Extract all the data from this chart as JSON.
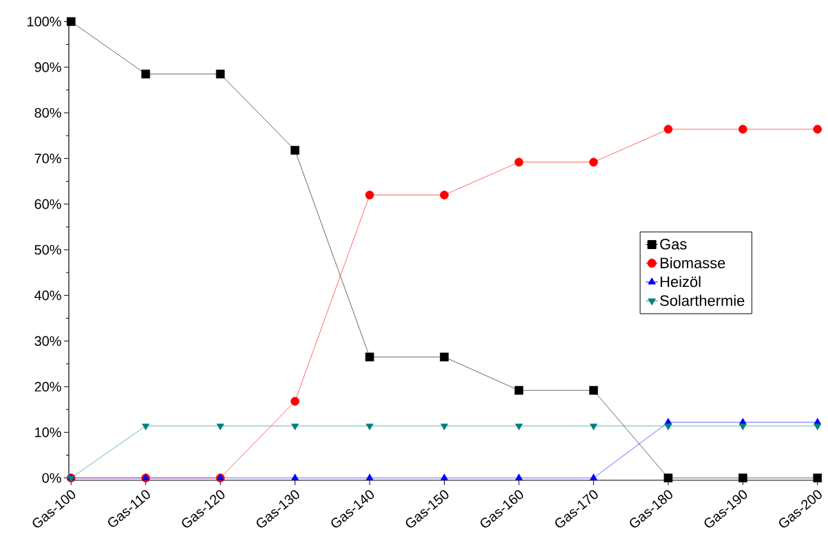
{
  "chart_data": {
    "type": "line",
    "categories": [
      "Gas-100",
      "Gas-110",
      "Gas-120",
      "Gas-130",
      "Gas-140",
      "Gas-150",
      "Gas-160",
      "Gas-170",
      "Gas-180",
      "Gas-190",
      "Gas-200"
    ],
    "series": [
      {
        "name": "Gas",
        "color": "#000000",
        "marker": "square",
        "values": [
          100,
          88.5,
          88.5,
          71.8,
          26.5,
          26.5,
          19.2,
          19.2,
          0,
          0,
          0
        ]
      },
      {
        "name": "Biomasse",
        "color": "#ff0000",
        "marker": "circle",
        "values": [
          0,
          0,
          0,
          16.8,
          62,
          62,
          69.2,
          69.2,
          76.4,
          76.4,
          76.4
        ]
      },
      {
        "name": "Heizöl",
        "color": "#0000ff",
        "marker": "triangle",
        "values": [
          0,
          0,
          0,
          0,
          0,
          0,
          0,
          0,
          12.2,
          12.2,
          12.2
        ]
      },
      {
        "name": "Solarthermie",
        "color": "#008080",
        "marker": "triangle-down",
        "values": [
          0,
          11.4,
          11.4,
          11.4,
          11.4,
          11.4,
          11.4,
          11.4,
          11.4,
          11.4,
          11.4
        ]
      }
    ],
    "ylim": [
      -0.5,
      100.5
    ],
    "yticks": [
      {
        "value": 0,
        "label": "0%"
      },
      {
        "value": 10,
        "label": "10%"
      },
      {
        "value": 20,
        "label": "20%"
      },
      {
        "value": 30,
        "label": "30%"
      },
      {
        "value": 40,
        "label": "40%"
      },
      {
        "value": 50,
        "label": "50%"
      },
      {
        "value": 60,
        "label": "60%"
      },
      {
        "value": 70,
        "label": "70%"
      },
      {
        "value": 80,
        "label": "80%"
      },
      {
        "value": 90,
        "label": "90%"
      },
      {
        "value": 100,
        "label": "100%"
      }
    ],
    "legend": "right",
    "grid": false,
    "line_style": "solid"
  }
}
